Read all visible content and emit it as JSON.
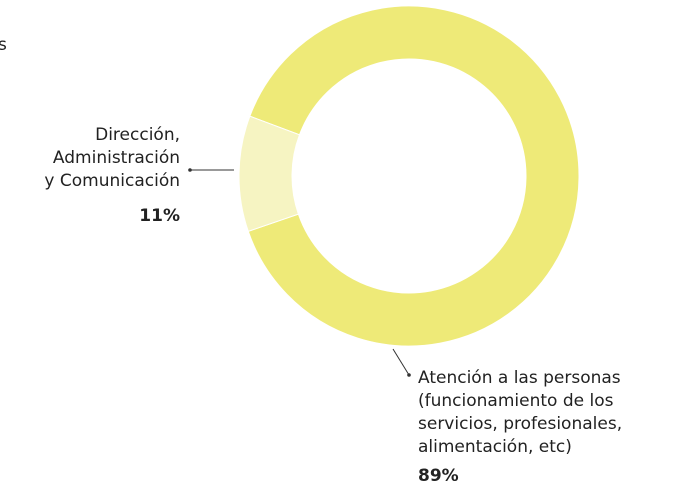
{
  "chart_data": {
    "type": "donut",
    "annotations": [
      "s"
    ],
    "categories": [
      "Dirección,\nAdministración\ny Comunicación",
      "Atención a las personas\n(funcionamiento de los\nservicios, profesionales,\nalimentación, etc)"
    ],
    "values": [
      11,
      89
    ],
    "value_labels": [
      "11%",
      "89%"
    ],
    "colors": [
      "#f6f4c2",
      "#eeea78"
    ]
  }
}
